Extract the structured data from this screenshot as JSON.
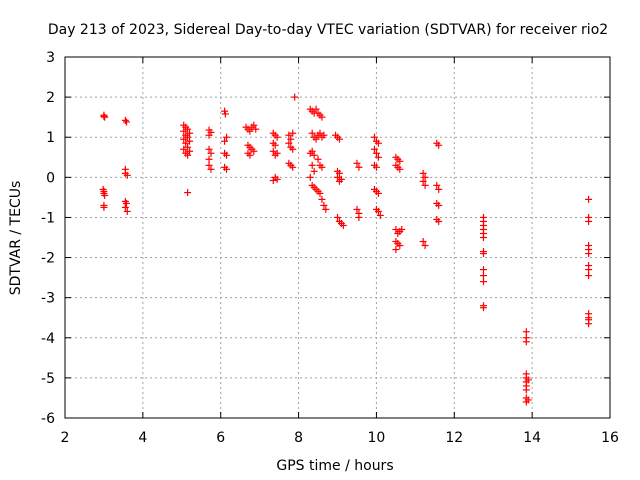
{
  "chart_data": {
    "type": "scatter",
    "title": "Day 213 of 2023, Sidereal Day-to-day VTEC variation (SDTVAR) for receiver rio2",
    "xlabel": "GPS time / hours",
    "ylabel": "SDTVAR / TECUs",
    "xlim": [
      2,
      16
    ],
    "ylim": [
      -6,
      3
    ],
    "xticks": [
      "2",
      "4",
      "6",
      "8",
      "10",
      "12",
      "14",
      "16"
    ],
    "yticks": [
      "3",
      "2",
      "1",
      "0",
      "-1",
      "-2",
      "-3",
      "-4",
      "-5",
      "-6"
    ],
    "grid": true,
    "marker": "+",
    "color": "#ff0000",
    "series": [
      {
        "name": "SDTVAR",
        "points": [
          [
            3.0,
            1.55
          ],
          [
            3.0,
            1.52
          ],
          [
            3.02,
            1.5
          ],
          [
            2.98,
            -0.3
          ],
          [
            3.0,
            -0.35
          ],
          [
            3.0,
            -0.4
          ],
          [
            3.02,
            -0.45
          ],
          [
            3.0,
            -0.7
          ],
          [
            3.0,
            -0.75
          ],
          [
            3.55,
            1.42
          ],
          [
            3.58,
            1.38
          ],
          [
            3.55,
            0.2
          ],
          [
            3.55,
            0.1
          ],
          [
            3.6,
            0.05
          ],
          [
            3.55,
            -0.6
          ],
          [
            3.58,
            -0.65
          ],
          [
            3.55,
            -0.75
          ],
          [
            3.6,
            -0.85
          ],
          [
            5.05,
            1.3
          ],
          [
            5.1,
            1.25
          ],
          [
            5.15,
            1.2
          ],
          [
            5.05,
            1.15
          ],
          [
            5.1,
            1.05
          ],
          [
            5.15,
            1.0
          ],
          [
            5.05,
            0.95
          ],
          [
            5.1,
            0.85
          ],
          [
            5.15,
            0.75
          ],
          [
            5.05,
            0.7
          ],
          [
            5.1,
            0.6
          ],
          [
            5.15,
            0.55
          ],
          [
            5.2,
            1.1
          ],
          [
            5.2,
            0.9
          ],
          [
            5.2,
            0.65
          ],
          [
            5.15,
            -0.38
          ],
          [
            5.7,
            1.18
          ],
          [
            5.75,
            1.12
          ],
          [
            5.7,
            1.05
          ],
          [
            5.7,
            0.7
          ],
          [
            5.75,
            0.6
          ],
          [
            5.7,
            0.45
          ],
          [
            5.7,
            0.3
          ],
          [
            5.75,
            0.2
          ],
          [
            6.1,
            1.65
          ],
          [
            6.12,
            1.58
          ],
          [
            6.15,
            1.0
          ],
          [
            6.1,
            0.9
          ],
          [
            6.1,
            0.6
          ],
          [
            6.15,
            0.55
          ],
          [
            6.1,
            0.25
          ],
          [
            6.15,
            0.2
          ],
          [
            6.65,
            1.25
          ],
          [
            6.7,
            1.2
          ],
          [
            6.75,
            1.15
          ],
          [
            6.8,
            1.25
          ],
          [
            6.85,
            1.3
          ],
          [
            6.7,
            0.8
          ],
          [
            6.75,
            0.75
          ],
          [
            6.8,
            0.7
          ],
          [
            6.7,
            0.6
          ],
          [
            6.75,
            0.55
          ],
          [
            6.85,
            0.65
          ],
          [
            6.9,
            1.2
          ],
          [
            7.35,
            1.1
          ],
          [
            7.4,
            1.05
          ],
          [
            7.45,
            1.0
          ],
          [
            7.35,
            0.85
          ],
          [
            7.4,
            0.8
          ],
          [
            7.35,
            0.65
          ],
          [
            7.4,
            0.55
          ],
          [
            7.45,
            0.6
          ],
          [
            7.4,
            0.0
          ],
          [
            7.45,
            -0.05
          ],
          [
            7.35,
            -0.08
          ],
          [
            7.75,
            1.05
          ],
          [
            7.8,
            0.95
          ],
          [
            7.85,
            1.1
          ],
          [
            7.75,
            0.85
          ],
          [
            7.8,
            0.75
          ],
          [
            7.85,
            0.7
          ],
          [
            7.75,
            0.35
          ],
          [
            7.8,
            0.3
          ],
          [
            7.85,
            0.25
          ],
          [
            7.9,
            2.0
          ],
          [
            8.3,
            1.7
          ],
          [
            8.35,
            1.65
          ],
          [
            8.4,
            1.6
          ],
          [
            8.45,
            1.7
          ],
          [
            8.5,
            1.6
          ],
          [
            8.55,
            1.55
          ],
          [
            8.6,
            1.5
          ],
          [
            8.35,
            1.1
          ],
          [
            8.4,
            1.0
          ],
          [
            8.45,
            0.95
          ],
          [
            8.5,
            1.05
          ],
          [
            8.55,
            1.1
          ],
          [
            8.6,
            1.0
          ],
          [
            8.65,
            1.05
          ],
          [
            8.3,
            0.6
          ],
          [
            8.35,
            0.65
          ],
          [
            8.4,
            0.55
          ],
          [
            8.5,
            0.45
          ],
          [
            8.55,
            0.3
          ],
          [
            8.6,
            0.25
          ],
          [
            8.35,
            0.3
          ],
          [
            8.4,
            0.15
          ],
          [
            8.3,
            0.0
          ],
          [
            8.35,
            -0.2
          ],
          [
            8.4,
            -0.25
          ],
          [
            8.45,
            -0.3
          ],
          [
            8.5,
            -0.35
          ],
          [
            8.55,
            -0.4
          ],
          [
            8.6,
            -0.55
          ],
          [
            8.65,
            -0.7
          ],
          [
            8.7,
            -0.8
          ],
          [
            8.95,
            1.05
          ],
          [
            9.0,
            1.0
          ],
          [
            9.05,
            0.95
          ],
          [
            9.0,
            0.15
          ],
          [
            9.05,
            0.1
          ],
          [
            9.0,
            0.0
          ],
          [
            9.1,
            -0.05
          ],
          [
            9.05,
            -0.1
          ],
          [
            9.0,
            -1.0
          ],
          [
            9.05,
            -1.1
          ],
          [
            9.1,
            -1.15
          ],
          [
            9.15,
            -1.2
          ],
          [
            9.5,
            0.35
          ],
          [
            9.55,
            0.25
          ],
          [
            9.5,
            -0.8
          ],
          [
            9.55,
            -0.9
          ],
          [
            9.55,
            -1.0
          ],
          [
            9.95,
            1.0
          ],
          [
            10.0,
            0.9
          ],
          [
            10.05,
            0.85
          ],
          [
            9.95,
            0.7
          ],
          [
            10.0,
            0.6
          ],
          [
            10.05,
            0.5
          ],
          [
            9.95,
            0.3
          ],
          [
            10.0,
            0.25
          ],
          [
            9.95,
            -0.3
          ],
          [
            10.0,
            -0.35
          ],
          [
            10.05,
            -0.4
          ],
          [
            10.0,
            -0.8
          ],
          [
            10.05,
            -0.85
          ],
          [
            10.1,
            -0.95
          ],
          [
            10.5,
            0.5
          ],
          [
            10.55,
            0.45
          ],
          [
            10.6,
            0.4
          ],
          [
            10.5,
            0.3
          ],
          [
            10.55,
            0.25
          ],
          [
            10.6,
            0.2
          ],
          [
            10.5,
            -1.3
          ],
          [
            10.55,
            -1.4
          ],
          [
            10.6,
            -1.35
          ],
          [
            10.65,
            -1.3
          ],
          [
            10.5,
            -1.6
          ],
          [
            10.55,
            -1.65
          ],
          [
            10.6,
            -1.7
          ],
          [
            10.5,
            -1.8
          ],
          [
            11.2,
            0.1
          ],
          [
            11.25,
            0.0
          ],
          [
            11.2,
            -0.1
          ],
          [
            11.25,
            -0.2
          ],
          [
            11.2,
            -1.6
          ],
          [
            11.25,
            -1.7
          ],
          [
            11.55,
            0.85
          ],
          [
            11.6,
            0.8
          ],
          [
            11.55,
            -0.2
          ],
          [
            11.6,
            -0.3
          ],
          [
            11.55,
            -0.65
          ],
          [
            11.6,
            -0.7
          ],
          [
            11.55,
            -1.05
          ],
          [
            11.6,
            -1.1
          ],
          [
            12.75,
            -1.0
          ],
          [
            12.75,
            -1.1
          ],
          [
            12.75,
            -1.2
          ],
          [
            12.75,
            -1.3
          ],
          [
            12.75,
            -1.4
          ],
          [
            12.75,
            -1.5
          ],
          [
            12.75,
            -1.85
          ],
          [
            12.75,
            -1.9
          ],
          [
            12.75,
            -2.3
          ],
          [
            12.75,
            -2.45
          ],
          [
            12.75,
            -2.6
          ],
          [
            12.75,
            -3.2
          ],
          [
            12.75,
            -3.25
          ],
          [
            13.85,
            -3.85
          ],
          [
            13.85,
            -4.0
          ],
          [
            13.85,
            -4.1
          ],
          [
            13.85,
            -4.9
          ],
          [
            13.85,
            -5.0
          ],
          [
            13.85,
            -5.1
          ],
          [
            13.85,
            -5.2
          ],
          [
            13.85,
            -5.3
          ],
          [
            13.85,
            -5.5
          ],
          [
            13.85,
            -5.6
          ],
          [
            13.9,
            -5.55
          ],
          [
            13.9,
            -5.05
          ],
          [
            15.45,
            -0.55
          ],
          [
            15.45,
            -1.0
          ],
          [
            15.45,
            -1.1
          ],
          [
            15.45,
            -1.7
          ],
          [
            15.45,
            -1.8
          ],
          [
            15.45,
            -1.9
          ],
          [
            15.45,
            -2.2
          ],
          [
            15.45,
            -2.3
          ],
          [
            15.45,
            -2.45
          ],
          [
            15.45,
            -3.4
          ],
          [
            15.45,
            -3.5
          ],
          [
            15.45,
            -3.55
          ],
          [
            15.45,
            -3.65
          ]
        ]
      }
    ]
  }
}
